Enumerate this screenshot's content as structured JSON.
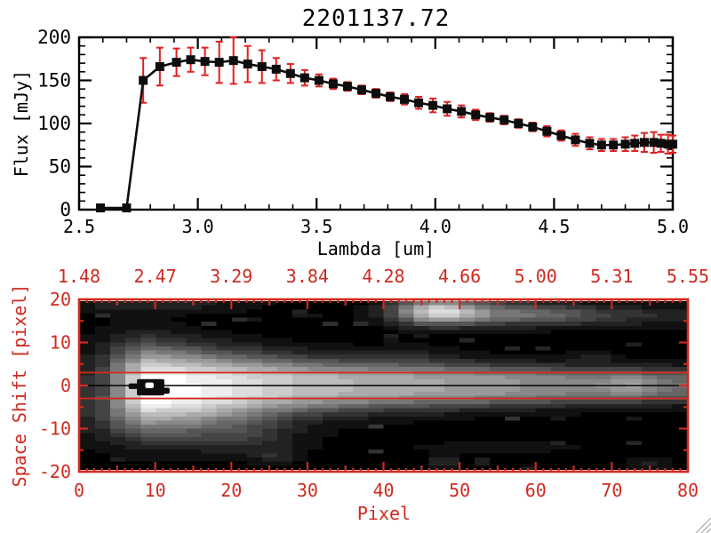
{
  "window": {
    "background": "#ffffff"
  },
  "colors": {
    "axis_black": "#000000",
    "panel_red": "#cf2a21",
    "error_red": "#e02020",
    "marker_black": "#0d0d0d",
    "grip_gray": "#b8b8b8"
  },
  "chart_data": [
    {
      "type": "line",
      "title": "2201137.72",
      "xlabel": "Lambda [um]",
      "ylabel": "Flux [mJy]",
      "xlim": [
        2.5,
        5.0
      ],
      "ylim": [
        0,
        200
      ],
      "x_ticks": [
        2.5,
        3.0,
        3.5,
        4.0,
        4.5,
        5.0
      ],
      "x_tick_labels": [
        "2.5",
        "3.0",
        "3.5",
        "4.0",
        "4.5",
        "5.0"
      ],
      "x_minor_step": 0.1,
      "y_ticks": [
        0,
        50,
        100,
        150,
        200
      ],
      "y_tick_labels": [
        "0",
        "50",
        "100",
        "150",
        "200"
      ],
      "y_minor_step": 10,
      "grid": false,
      "marker": "square",
      "error_bars": true,
      "x": [
        2.59,
        2.7,
        2.77,
        2.84,
        2.91,
        2.97,
        3.03,
        3.09,
        3.15,
        3.21,
        3.27,
        3.33,
        3.39,
        3.45,
        3.51,
        3.57,
        3.63,
        3.69,
        3.75,
        3.81,
        3.87,
        3.93,
        3.99,
        4.05,
        4.11,
        4.17,
        4.23,
        4.29,
        4.35,
        4.41,
        4.47,
        4.53,
        4.59,
        4.65,
        4.7,
        4.75,
        4.8,
        4.84,
        4.88,
        4.92,
        4.95,
        4.98,
        5.0
      ],
      "y": [
        2,
        2,
        150,
        166,
        171,
        174,
        172,
        171,
        173,
        169,
        166,
        163,
        158,
        153,
        150,
        146,
        143,
        139,
        135,
        131,
        128,
        124,
        121,
        117,
        114,
        110,
        107,
        104,
        100,
        96,
        91,
        86,
        81,
        77,
        75,
        75,
        76,
        77,
        78,
        78,
        77,
        76,
        76
      ],
      "yerr": [
        2,
        2,
        26,
        22,
        16,
        14,
        16,
        24,
        27,
        21,
        19,
        13,
        11,
        9,
        7,
        6,
        5,
        5,
        5,
        5,
        6,
        7,
        8,
        8,
        7,
        6,
        5,
        5,
        5,
        5,
        6,
        6,
        7,
        7,
        7,
        7,
        8,
        9,
        11,
        12,
        10,
        11,
        10
      ]
    },
    {
      "type": "heatmap",
      "xlabel": "Pixel",
      "ylabel": "Space Shift [pixel]",
      "xlim": [
        0,
        80
      ],
      "ylim": [
        -20,
        20
      ],
      "x_ticks": [
        0,
        10,
        20,
        30,
        40,
        50,
        60,
        70,
        80
      ],
      "x_tick_labels": [
        "0",
        "10",
        "20",
        "30",
        "40",
        "50",
        "60",
        "70",
        "80"
      ],
      "y_ticks": [
        20,
        10,
        0,
        -10,
        -20
      ],
      "y_tick_labels": [
        "20",
        "10",
        "0",
        "-10",
        "-20"
      ],
      "top_axis_tick_positions": [
        0,
        10,
        20,
        30,
        40,
        50,
        60,
        70,
        80
      ],
      "top_axis_tick_labels": [
        "1.48",
        "2.47",
        "3.29",
        "3.84",
        "4.28",
        "4.66",
        "5.00",
        "5.31",
        "5.55"
      ],
      "aperture_rows": [
        3,
        -3
      ],
      "trace_row": 0,
      "model": {
        "intensity_knots": [
          [
            0,
            30
          ],
          [
            3,
            70
          ],
          [
            6,
            170
          ],
          [
            9,
            255
          ],
          [
            14,
            245
          ],
          [
            20,
            225
          ],
          [
            25,
            205
          ],
          [
            30,
            190
          ],
          [
            35,
            180
          ],
          [
            40,
            172
          ],
          [
            45,
            166
          ],
          [
            50,
            160
          ],
          [
            55,
            152
          ],
          [
            60,
            142
          ],
          [
            65,
            130
          ],
          [
            70,
            120
          ],
          [
            73,
            128
          ],
          [
            76,
            114
          ],
          [
            80,
            106
          ]
        ],
        "sigma_knots": [
          [
            0,
            6.5
          ],
          [
            10,
            5.8
          ],
          [
            20,
            4.6
          ],
          [
            30,
            3.8
          ],
          [
            40,
            3.3
          ],
          [
            50,
            2.9
          ],
          [
            60,
            2.6
          ],
          [
            70,
            2.4
          ],
          [
            80,
            2.2
          ]
        ],
        "core_half_width": 1.2,
        "blobs": [
          {
            "x": 47,
            "y": 18,
            "sx": 4,
            "sy": 2.2,
            "i": 185
          },
          {
            "x": 57,
            "y": 17.5,
            "sx": 7,
            "sy": 2,
            "i": 85
          },
          {
            "x": 70,
            "y": 17,
            "sx": 14,
            "sy": 1.8,
            "i": 45
          },
          {
            "x": 10,
            "y": 20,
            "sx": 9,
            "sy": 1.6,
            "i": 40
          },
          {
            "x": 14,
            "y": -9,
            "sx": 9,
            "sy": 4.5,
            "i": 48
          },
          {
            "x": 22,
            "y": -13,
            "sx": 5,
            "sy": 3,
            "i": 30
          },
          {
            "x": 72,
            "y": 0,
            "sx": 3,
            "sy": 1.6,
            "i": 40
          },
          {
            "x": 44,
            "y": 7,
            "sx": 4,
            "sy": 2,
            "i": 18
          },
          {
            "x": 55,
            "y": -15,
            "sx": 10,
            "sy": 1.2,
            "i": 16
          },
          {
            "x": 48,
            "y": -18.5,
            "sx": 1.5,
            "sy": 1,
            "i": 40
          },
          {
            "x": 26,
            "y": -17.5,
            "sx": 2,
            "sy": 1.2,
            "i": 35
          },
          {
            "x": 68,
            "y": 7,
            "sx": 2,
            "sy": 1,
            "i": 28
          },
          {
            "x": 75,
            "y": -19,
            "sx": 2.5,
            "sy": 1,
            "i": 30
          }
        ],
        "peak_marker": {
          "body": {
            "x0": 7.6,
            "x1": 11.2,
            "r0": -2.3,
            "r1": 1.5
          },
          "left_nub": {
            "x0": 6.5,
            "x1": 7.7,
            "r0": -0.8,
            "r1": 0.5
          },
          "right_nub": {
            "x0": 11.1,
            "x1": 11.9,
            "r0": -1.9,
            "r1": -0.5
          },
          "hole": {
            "x0": 8.7,
            "x1": 9.8,
            "r0": -0.6,
            "r1": 0.7
          }
        }
      }
    }
  ]
}
